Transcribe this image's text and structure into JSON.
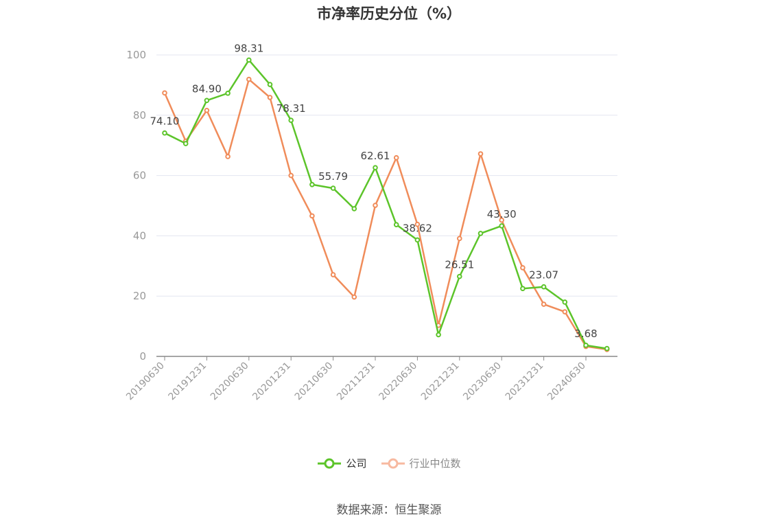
{
  "chart_data": {
    "type": "line",
    "title": "市净率历史分位（%）",
    "x": [
      "20190630",
      "20190930",
      "20191231",
      "20200331",
      "20200630",
      "20200930",
      "20201231",
      "20210331",
      "20210630",
      "20210930",
      "20211231",
      "20220331",
      "20220630",
      "20220930",
      "20221231",
      "20230331",
      "20230630",
      "20230930",
      "20231231",
      "20240331",
      "20240630",
      "20240930"
    ],
    "x_tick_labels": [
      "20190630",
      "20191231",
      "20200630",
      "20201231",
      "20210630",
      "20211231",
      "20220630",
      "20221231",
      "20230630",
      "20231231",
      "20240630"
    ],
    "ylim": [
      0,
      100
    ],
    "y_ticks": [
      0,
      20,
      40,
      60,
      80,
      100
    ],
    "grid": true,
    "legend_position": "bottom",
    "series": [
      {
        "name": "公司",
        "color": "#5cc42a",
        "values": [
          74.1,
          70.6,
          84.9,
          87.3,
          98.31,
          90.2,
          78.31,
          57.0,
          55.79,
          49.0,
          62.61,
          43.7,
          38.62,
          7.2,
          26.51,
          40.8,
          43.3,
          22.5,
          23.07,
          18.0,
          3.68,
          2.6
        ],
        "data_labels": [
          "74.10",
          null,
          "84.90",
          null,
          "98.31",
          null,
          "78.31",
          null,
          "55.79",
          null,
          "62.61",
          null,
          "38.62",
          null,
          "26.51",
          null,
          "43.30",
          null,
          "23.07",
          null,
          "3.68",
          null
        ]
      },
      {
        "name": "行业中位数",
        "color": "#f08c5a",
        "values": [
          87.4,
          71.4,
          81.6,
          66.3,
          91.9,
          85.9,
          60.0,
          46.6,
          27.1,
          19.7,
          50.1,
          65.9,
          43.8,
          10.3,
          39.1,
          67.2,
          45.2,
          29.4,
          17.3,
          14.8,
          3.3,
          2.3
        ]
      }
    ]
  },
  "source_text": "数据来源：恒生聚源"
}
